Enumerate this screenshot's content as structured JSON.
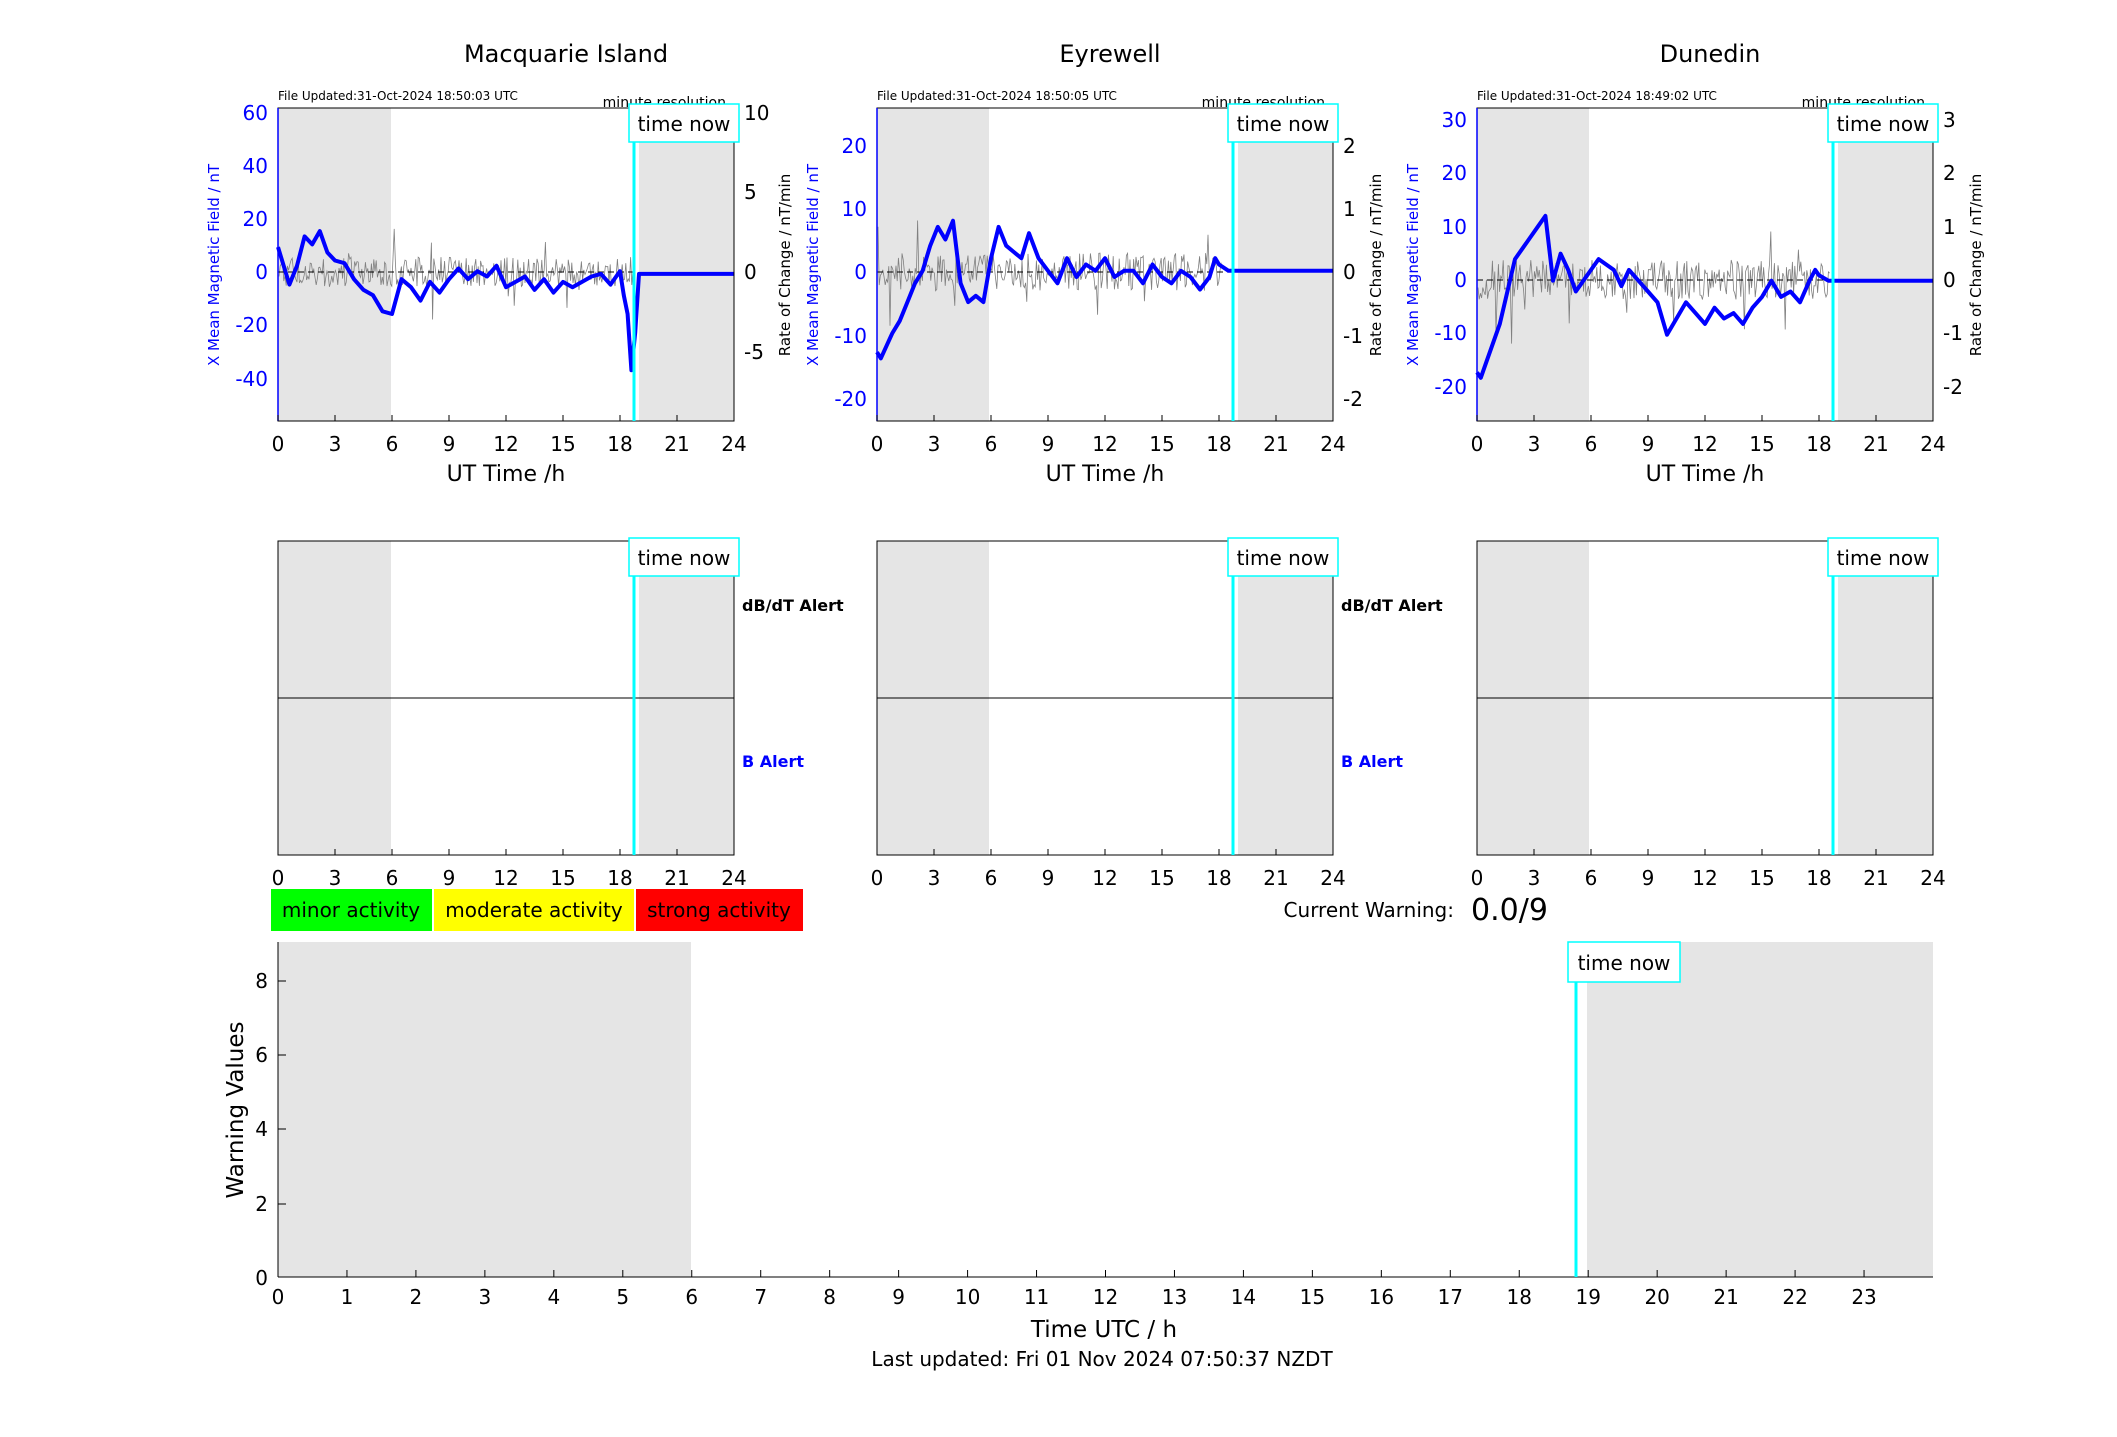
{
  "common": {
    "time_now_label": "time now",
    "x_ticks": [
      "0",
      "3",
      "6",
      "9",
      "12",
      "15",
      "18",
      "21",
      "24"
    ],
    "ut_xlabel": "UT Time /h",
    "minute_resolution": "minute resolution",
    "dbdt_alert": "dB/dT Alert",
    "b_alert": "B Alert",
    "colors": {
      "shade": "#e5e5e5",
      "time_now": "#00ffff",
      "mean_field": "#0000ff",
      "rate": "#808080",
      "minor": "#00ff00",
      "moderate": "#ffff00",
      "strong": "#ff0000"
    }
  },
  "stations": [
    {
      "title": "Macquarie Island",
      "file_updated": "File Updated:31-Oct-2024 18:50:03 UTC",
      "left_ylabel": "X Mean Magnetic Field / nT",
      "right_ylabel": "Rate of Change / nT/min",
      "left_ticks": [
        "60",
        "40",
        "20",
        "0",
        "-20",
        "-40"
      ],
      "right_ticks": [
        "10",
        "5",
        "0",
        "-5"
      ]
    },
    {
      "title": "Eyrewell",
      "file_updated": "File Updated:31-Oct-2024 18:50:05 UTC",
      "left_ylabel": "X Mean Magnetic Field / nT",
      "right_ylabel": "Rate of Change / nT/min",
      "left_ticks": [
        "20",
        "10",
        "0",
        "-10",
        "-20"
      ],
      "right_ticks": [
        "2",
        "1",
        "0",
        "-1",
        "-2"
      ]
    },
    {
      "title": "Dunedin",
      "file_updated": "File Updated:31-Oct-2024 18:49:02 UTC",
      "left_ylabel": "X Mean Magnetic Field / nT",
      "right_ylabel": "Rate of Change / nT/min",
      "left_ticks": [
        "30",
        "20",
        "10",
        "0",
        "-10",
        "-20"
      ],
      "right_ticks": [
        "3",
        "2",
        "1",
        "0",
        "-1",
        "-2"
      ]
    }
  ],
  "legend": {
    "minor": "minor activity",
    "moderate": "moderate activity",
    "strong": "strong activity"
  },
  "warning": {
    "label": "Current Warning:",
    "value": "0.0/9"
  },
  "bottom": {
    "ylabel": "Warning Values",
    "xlabel": "Time UTC / h",
    "y_ticks": [
      "8",
      "6",
      "4",
      "2",
      "0"
    ],
    "x_ticks": [
      "0",
      "1",
      "2",
      "3",
      "4",
      "5",
      "6",
      "7",
      "8",
      "9",
      "10",
      "11",
      "12",
      "13",
      "14",
      "15",
      "16",
      "17",
      "18",
      "19",
      "20",
      "21",
      "22",
      "23"
    ]
  },
  "last_updated": "Last updated: Fri 01 Nov 2024 07:50:37 NZDT",
  "chart_data": [
    {
      "type": "line",
      "title": "Macquarie Island",
      "xlabel": "UT Time /h",
      "ylabel": "X Mean Magnetic Field / nT",
      "y2label": "Rate of Change / nT/min",
      "xlim": [
        0,
        24
      ],
      "ylim": [
        -55,
        62
      ],
      "y2lim": [
        -9.2,
        10.3
      ],
      "shaded_x": [
        [
          0,
          6
        ],
        [
          19,
          24
        ]
      ],
      "time_now": 18.85,
      "series": [
        {
          "axis": "left",
          "color": "#0000ff",
          "x": [
            0,
            0.3,
            0.6,
            1,
            1.4,
            1.8,
            2.2,
            2.6,
            3,
            3.5,
            4,
            4.5,
            5,
            5.5,
            6,
            6.5,
            7,
            7.5,
            8,
            8.5,
            9,
            9.5,
            10,
            10.5,
            11,
            11.5,
            12,
            12.5,
            13,
            13.5,
            14,
            14.5,
            15,
            15.5,
            16,
            16.5,
            17,
            17.5,
            17.8,
            18,
            18.2,
            18.4,
            18.6,
            18.8,
            19,
            20,
            21,
            22,
            23,
            24
          ],
          "y": [
            10,
            3,
            -4,
            3,
            14,
            11,
            16,
            8,
            5,
            4,
            -2,
            -6,
            -8,
            -14,
            -15,
            -2,
            -5,
            -10,
            -3,
            -7,
            -2,
            2,
            -2,
            1,
            -1,
            3,
            -5,
            -3,
            -1,
            -6,
            -2,
            -7,
            -3,
            -5,
            -3,
            -1,
            0,
            -4,
            -1,
            1,
            -8,
            -15,
            -36,
            -22,
            0,
            0,
            0,
            0,
            0,
            0
          ]
        },
        {
          "axis": "right",
          "color": "#808080",
          "x": [
            0,
            18.85
          ],
          "y": [
            0,
            0
          ]
        }
      ]
    },
    {
      "type": "line",
      "title": "Eyrewell",
      "xlabel": "UT Time /h",
      "ylabel": "X Mean Magnetic Field / nT",
      "y2label": "Rate of Change / nT/min",
      "xlim": [
        0,
        24
      ],
      "ylim": [
        -24,
        26
      ],
      "y2lim": [
        -2.4,
        2.6
      ],
      "shaded_x": [
        [
          0,
          6
        ],
        [
          19,
          24
        ]
      ],
      "time_now": 18.85,
      "series": [
        {
          "axis": "left",
          "color": "#0000ff",
          "x": [
            0,
            0.2,
            0.5,
            0.8,
            1.2,
            1.6,
            2,
            2.4,
            2.8,
            3.2,
            3.6,
            4,
            4.4,
            4.8,
            5.2,
            5.6,
            6,
            6.4,
            6.8,
            7.2,
            7.6,
            8,
            8.5,
            9,
            9.5,
            10,
            10.5,
            11,
            11.5,
            12,
            12.5,
            13,
            13.5,
            14,
            14.5,
            15,
            15.5,
            16,
            16.5,
            17,
            17.5,
            17.8,
            18,
            18.5,
            19,
            20,
            21,
            22,
            23,
            24
          ],
          "y": [
            -13,
            -14,
            -12,
            -10,
            -8,
            -5,
            -2,
            0,
            4,
            7,
            5,
            8,
            -2,
            -5,
            -4,
            -5,
            2,
            7,
            4,
            3,
            2,
            6,
            2,
            0,
            -2,
            2,
            -1,
            1,
            0,
            2,
            -1,
            0,
            0,
            -2,
            1,
            -1,
            -2,
            0,
            -1,
            -3,
            -1,
            2,
            1,
            0,
            0,
            0,
            0,
            0,
            0,
            0
          ]
        },
        {
          "axis": "right",
          "color": "#808080",
          "x": [
            0,
            18.85
          ],
          "y": [
            0,
            0
          ]
        }
      ]
    },
    {
      "type": "line",
      "title": "Dunedin",
      "xlabel": "UT Time /h",
      "ylabel": "X Mean Magnetic Field / nT",
      "y2label": "Rate of Change / nT/min",
      "xlim": [
        0,
        24
      ],
      "ylim": [
        -26,
        32
      ],
      "y2lim": [
        -2.6,
        3.2
      ],
      "shaded_x": [
        [
          0,
          6
        ],
        [
          19,
          24
        ]
      ],
      "time_now": 18.85,
      "series": [
        {
          "axis": "left",
          "color": "#0000ff",
          "x": [
            0,
            0.2,
            0.5,
            0.8,
            1.2,
            1.6,
            2,
            2.4,
            2.8,
            3.2,
            3.6,
            4,
            4.4,
            4.8,
            5.2,
            5.6,
            6,
            6.4,
            6.8,
            7.2,
            7.6,
            8,
            8.5,
            9,
            9.5,
            10,
            10.5,
            11,
            11.5,
            12,
            12.5,
            13,
            13.5,
            14,
            14.5,
            15,
            15.5,
            16,
            16.5,
            17,
            17.5,
            17.8,
            18,
            18.5,
            19,
            20,
            21,
            22,
            23,
            24
          ],
          "y": [
            -17,
            -18,
            -15,
            -12,
            -8,
            -2,
            4,
            6,
            8,
            10,
            12,
            0,
            5,
            2,
            -2,
            0,
            2,
            4,
            3,
            2,
            -1,
            2,
            0,
            -2,
            -4,
            -10,
            -7,
            -4,
            -6,
            -8,
            -5,
            -7,
            -6,
            -8,
            -5,
            -3,
            0,
            -3,
            -2,
            -4,
            0,
            2,
            1,
            0,
            0,
            0,
            0,
            0,
            0,
            0
          ]
        },
        {
          "axis": "right",
          "color": "#808080",
          "x": [
            0,
            18.85
          ],
          "y": [
            0,
            0
          ]
        }
      ]
    },
    {
      "type": "line",
      "title": "",
      "xlabel": "Time UTC / h",
      "ylabel": "Warning Values",
      "xlim": [
        0,
        24
      ],
      "ylim": [
        0,
        9
      ],
      "shaded_x": [
        [
          0,
          6
        ],
        [
          19,
          24
        ]
      ],
      "time_now": 18.85,
      "current_warning": 0.0,
      "series": []
    }
  ]
}
